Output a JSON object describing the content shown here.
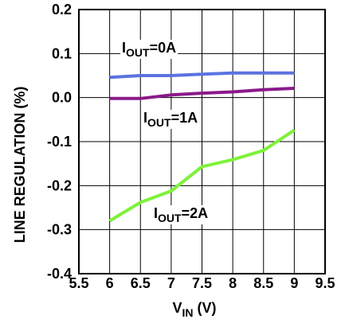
{
  "chart_data": {
    "type": "line",
    "xlabel": {
      "main": "V",
      "sub": "IN",
      "tail": " (V)"
    },
    "ylabel": "LINE REGULATION (%)",
    "xlim": [
      5.5,
      9.5
    ],
    "ylim": [
      -0.4,
      0.2
    ],
    "xticks": [
      5.5,
      6,
      6.5,
      7,
      7.5,
      8,
      8.5,
      9,
      9.5
    ],
    "xtick_labels": [
      "5.5",
      "6",
      "6.5",
      "7",
      "7.5",
      "8",
      "8.5",
      "9",
      "9.5"
    ],
    "yticks": [
      0.2,
      0.1,
      0.0,
      -0.1,
      -0.2,
      -0.3,
      -0.4
    ],
    "ytick_labels": [
      "0.2",
      "0.1",
      "0.0",
      "-0.1",
      "-0.2",
      "-0.3",
      "-0.4"
    ],
    "grid": true,
    "series": [
      {
        "label": {
          "main": "I",
          "sub": "OUT",
          "tail": "=0A"
        },
        "color": "#5b73e0",
        "x": [
          6,
          6.5,
          7,
          7.5,
          8,
          8.5,
          9
        ],
        "y": [
          0.046,
          0.05,
          0.05,
          0.053,
          0.056,
          0.056,
          0.056
        ]
      },
      {
        "label": {
          "main": "I",
          "sub": "OUT",
          "tail": "=1A"
        },
        "color": "#8a1a8a",
        "x": [
          6,
          6.5,
          7,
          7.5,
          8,
          8.5,
          9
        ],
        "y": [
          -0.002,
          -0.002,
          0.006,
          0.01,
          0.013,
          0.018,
          0.021
        ]
      },
      {
        "label": {
          "main": "I",
          "sub": "OUT",
          "tail": "=2A"
        },
        "color": "#7ef23a",
        "x": [
          6,
          6.5,
          7,
          7.5,
          8,
          8.5,
          9
        ],
        "y": [
          -0.28,
          -0.238,
          -0.212,
          -0.157,
          -0.141,
          -0.12,
          -0.074
        ]
      }
    ]
  }
}
